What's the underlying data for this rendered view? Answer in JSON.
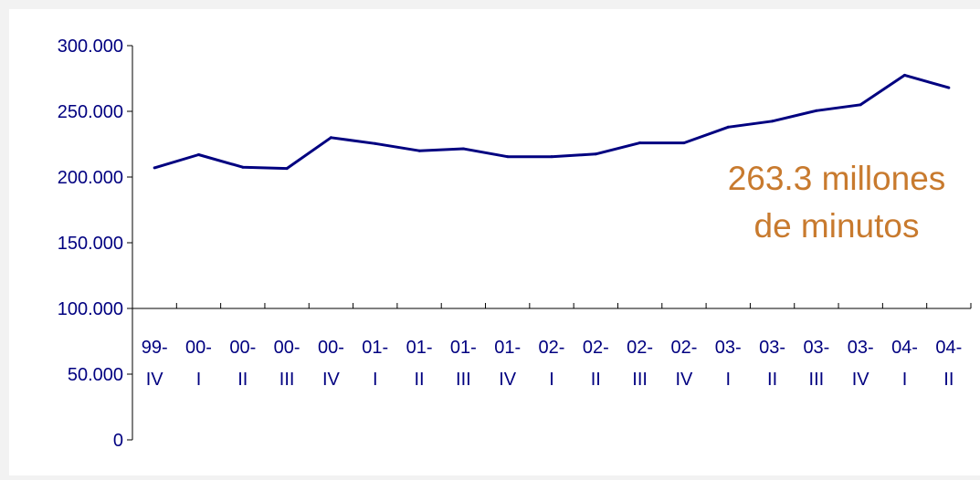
{
  "annotation": {
    "line1": "263.3 millones",
    "line2": "de minutos",
    "color": "#c87a2e"
  },
  "colors": {
    "series": "#000080",
    "axis": "#000000",
    "text": "#000080",
    "plot_bg": "#ffffff",
    "page_bg": "#f2f2f2"
  },
  "chart_data": {
    "type": "line",
    "title": "",
    "xlabel": "",
    "ylabel": "",
    "ylim": [
      0,
      300000
    ],
    "yticks": [
      0,
      50000,
      100000,
      150000,
      200000,
      250000,
      300000
    ],
    "ytick_labels": [
      "0",
      "50.000",
      "100.000",
      "150.000",
      "200.000",
      "250.000",
      "300.000"
    ],
    "x_axis_crosses_at": 100000,
    "grid": false,
    "categories": [
      [
        "99-",
        "IV"
      ],
      [
        "00-",
        "I"
      ],
      [
        "00-",
        "II"
      ],
      [
        "00-",
        "III"
      ],
      [
        "00-",
        "IV"
      ],
      [
        "01-",
        "I"
      ],
      [
        "01-",
        "II"
      ],
      [
        "01-",
        "III"
      ],
      [
        "01-",
        "IV"
      ],
      [
        "02-",
        "I"
      ],
      [
        "02-",
        "II"
      ],
      [
        "02-",
        "III"
      ],
      [
        "02-",
        "IV"
      ],
      [
        "03-",
        "I"
      ],
      [
        "03-",
        "II"
      ],
      [
        "03-",
        "III"
      ],
      [
        "03-",
        "IV"
      ],
      [
        "04-",
        "I"
      ],
      [
        "04-",
        "II"
      ]
    ],
    "series": [
      {
        "values": [
          207000,
          217000,
          207500,
          206500,
          230000,
          225500,
          220000,
          221500,
          215500,
          215500,
          217500,
          226000,
          226000,
          238000,
          242500,
          250500,
          255000,
          277500,
          268000
        ]
      }
    ]
  }
}
